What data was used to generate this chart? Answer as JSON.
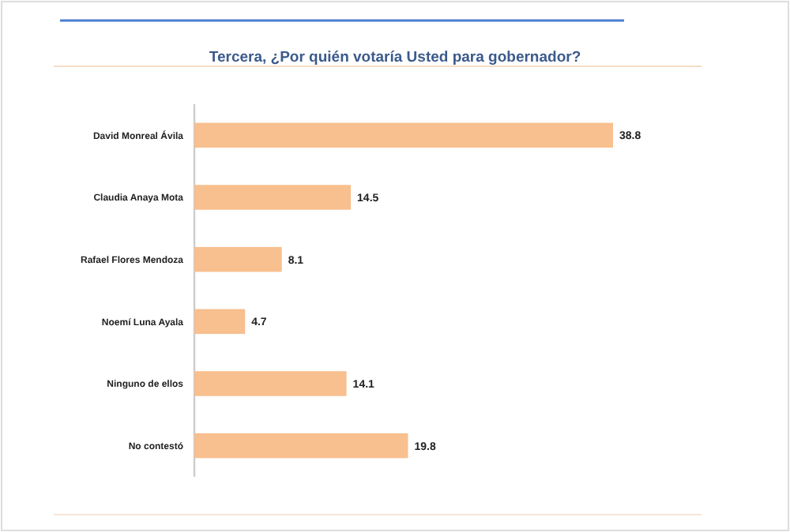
{
  "chart_data": {
    "type": "bar",
    "orientation": "horizontal",
    "title": "Tercera, ¿Por quién votaría Usted para gobernador?",
    "categories": [
      "David Monreal Ávila",
      "Claudia Anaya Mota",
      "Rafael Flores Mendoza",
      "Noemí Luna Ayala",
      "Ninguno de ellos",
      "No contestó"
    ],
    "values": [
      38.8,
      14.5,
      8.1,
      4.7,
      14.1,
      19.8
    ],
    "color": "#f8bf8f",
    "data_labels": true
  }
}
